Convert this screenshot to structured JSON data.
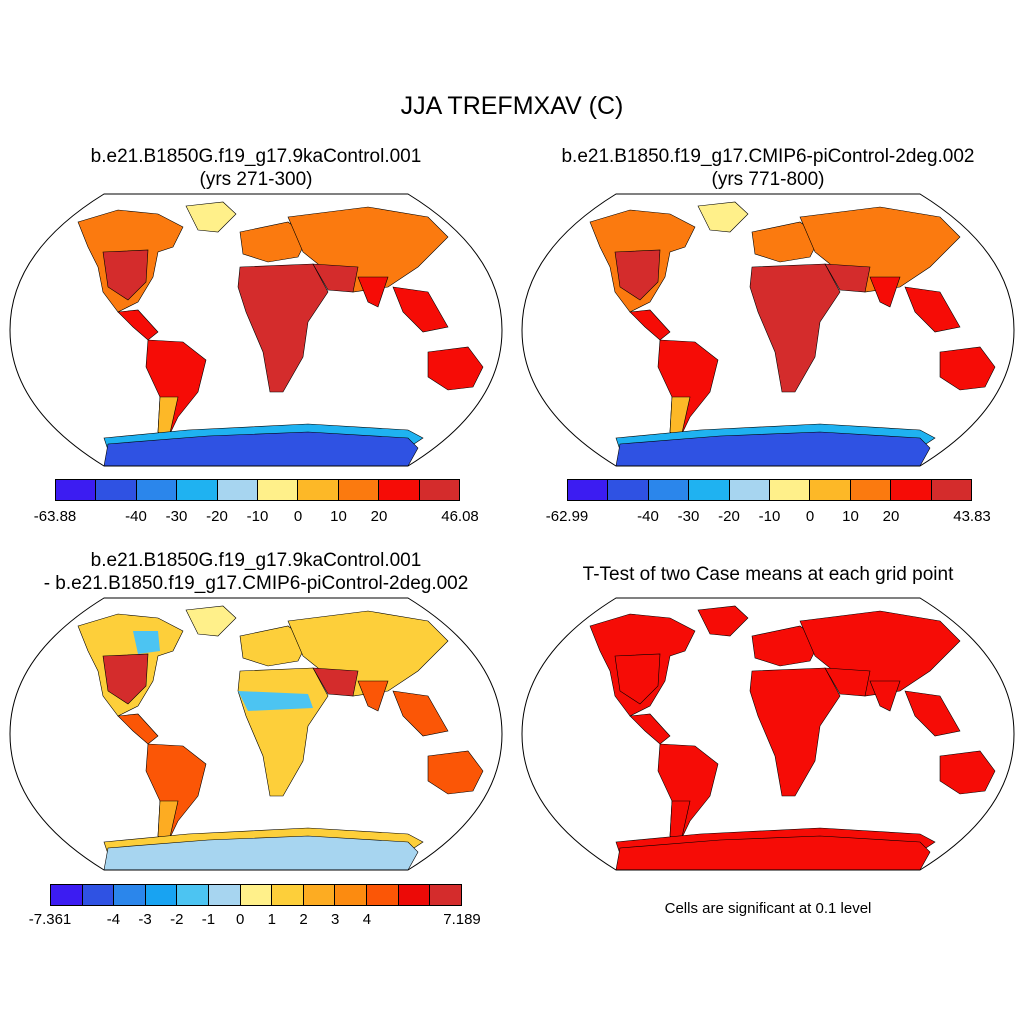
{
  "main_title": "JJA TREFMXAV (C)",
  "panels": [
    {
      "title_line1": "b.e21.B1850G.f19_g17.9kaControl.001",
      "title_line2": "(yrs 271-300)",
      "colors": [
        "#3c1cf2",
        "#2f52e3",
        "#2b86eb",
        "#1fb2f1",
        "#a7d5f0",
        "#fff08a",
        "#fdb827",
        "#fb7a0f",
        "#f60c06",
        "#d42c2c"
      ],
      "tick_labels": [
        "-63.88",
        "-40",
        "-30",
        "-20",
        "-10",
        "0",
        "10",
        "20",
        "46.08"
      ],
      "land": {
        "temperate": "#fb7a0f",
        "hot": "#f60c06",
        "veryhot": "#d42c2c",
        "cold": "#fdb827",
        "arctic": "#fff08a",
        "antarctic": "#2f52e3",
        "antarctic_edge": "#1fb2f1"
      }
    },
    {
      "title_line1": "b.e21.B1850.f19_g17.CMIP6-piControl-2deg.002",
      "title_line2": "(yrs 771-800)",
      "colors": [
        "#3c1cf2",
        "#2f52e3",
        "#2b86eb",
        "#1fb2f1",
        "#a7d5f0",
        "#fff08a",
        "#fdb827",
        "#fb7a0f",
        "#f60c06",
        "#d42c2c"
      ],
      "tick_labels": [
        "-62.99",
        "-40",
        "-30",
        "-20",
        "-10",
        "0",
        "10",
        "20",
        "43.83"
      ],
      "land": {
        "temperate": "#fb7a0f",
        "hot": "#f60c06",
        "veryhot": "#d42c2c",
        "cold": "#fdb827",
        "arctic": "#fff08a",
        "antarctic": "#2f52e3",
        "antarctic_edge": "#1fb2f1"
      }
    },
    {
      "title_line1": "b.e21.B1850G.f19_g17.9kaControl.001",
      "title_line2": "- b.e21.B1850.f19_g17.CMIP6-piControl-2deg.002",
      "colors": [
        "#3c1cf2",
        "#2f52e3",
        "#2b86eb",
        "#18a3f2",
        "#4cc4f2",
        "#a7d5f0",
        "#fff08a",
        "#fdcf3a",
        "#fdac22",
        "#fc8b10",
        "#fb5606",
        "#ec0a07",
        "#d42c2c"
      ],
      "tick_labels": [
        "-7.361",
        "-4",
        "-3",
        "-2",
        "-1",
        "0",
        "1",
        "2",
        "3",
        "4",
        "7.189"
      ],
      "land": {
        "temperate": "#fdcf3a",
        "hot": "#fb5606",
        "veryhot": "#d42c2c",
        "cold": "#fdac22",
        "arctic": "#fff08a",
        "antarctic": "#a7d5f0",
        "antarctic_edge": "#fdcf3a",
        "africa": "#fdcf3a",
        "sahel": "#4cc4f2"
      }
    },
    {
      "title_line1": "T-Test of two Case means at each grid point",
      "note": "Cells are significant at 0.1 level",
      "land": {
        "temperate": "#f60c06",
        "hot": "#f60c06",
        "veryhot": "#f60c06",
        "cold": "#f60c06",
        "arctic": "#f60c06",
        "antarctic": "#f60c06",
        "antarctic_edge": "#f60c06"
      }
    }
  ]
}
